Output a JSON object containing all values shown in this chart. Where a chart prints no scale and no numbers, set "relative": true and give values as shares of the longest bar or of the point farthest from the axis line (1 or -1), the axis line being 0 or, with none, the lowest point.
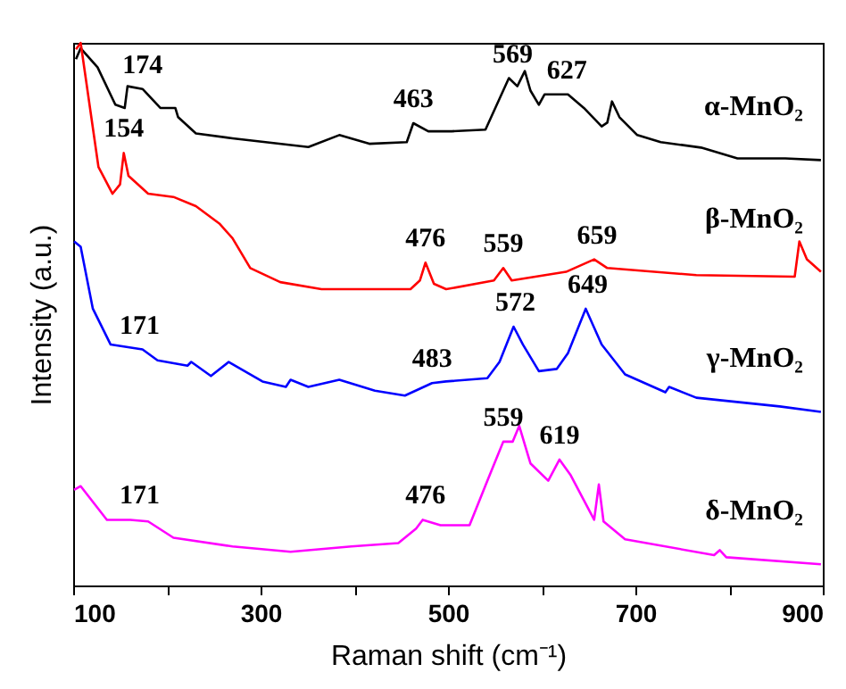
{
  "chart_data": {
    "type": "line",
    "relative": true,
    "xlabel": "Raman shift (cm⁻¹)",
    "ylabel": "Intensity (a.u.)",
    "xlim": [
      100,
      900
    ],
    "xticks": [
      100,
      {
        "value": 200,
        "label": null
      },
      300,
      {
        "value": 400,
        "label": null
      },
      500,
      {
        "value": 600,
        "label": null
      },
      700,
      {
        "value": 800,
        "label": null
      },
      900
    ],
    "grid": false,
    "series": [
      {
        "name": "α-MnO₂",
        "color": "#000000",
        "x": [
          103,
          108,
          126,
          145,
          155,
          158,
          174,
          193,
          209,
          212,
          231,
          270,
          351,
          384,
          416,
          456,
          463,
          479,
          504,
          540,
          565,
          574,
          582,
          588,
          597,
          603,
          628,
          645,
          664,
          670,
          675,
          683,
          702,
          727,
          770,
          809,
          860,
          898
        ],
        "values": [
          0.97,
          0.99,
          0.955,
          0.886,
          0.88,
          0.92,
          0.915,
          0.88,
          0.88,
          0.863,
          0.833,
          0.824,
          0.808,
          0.83,
          0.814,
          0.817,
          0.852,
          0.837,
          0.837,
          0.84,
          0.935,
          0.92,
          0.948,
          0.912,
          0.886,
          0.905,
          0.905,
          0.88,
          0.846,
          0.853,
          0.892,
          0.863,
          0.83,
          0.817,
          0.807,
          0.787,
          0.787,
          0.784
        ]
      },
      {
        "name": "β-MnO₂",
        "color": "#ff0000",
        "x": [
          103,
          108,
          127,
          142,
          150,
          154,
          159,
          180,
          207,
          231,
          256,
          270,
          289,
          321,
          365,
          460,
          470,
          476,
          485,
          498,
          549,
          559,
          568,
          626,
          656,
          670,
          765,
          870,
          875,
          883,
          898
        ],
        "values": [
          0.988,
          1.0,
          0.771,
          0.722,
          0.739,
          0.797,
          0.755,
          0.722,
          0.716,
          0.699,
          0.667,
          0.64,
          0.585,
          0.559,
          0.546,
          0.546,
          0.562,
          0.595,
          0.556,
          0.546,
          0.562,
          0.585,
          0.562,
          0.578,
          0.601,
          0.585,
          0.572,
          0.569,
          0.634,
          0.601,
          0.578
        ]
      },
      {
        "name": "γ-MnO₂",
        "color": "#0000ff",
        "x": [
          101,
          108,
          121,
          140,
          174,
          190,
          222,
          226,
          247,
          266,
          302,
          327,
          332,
          351,
          384,
          422,
          454,
          483,
          498,
          542,
          555,
          570,
          580,
          597,
          616,
          628,
          647,
          664,
          689,
          732,
          736,
          765,
          854,
          898
        ],
        "values": [
          0.634,
          0.624,
          0.51,
          0.444,
          0.435,
          0.415,
          0.405,
          0.412,
          0.386,
          0.412,
          0.376,
          0.366,
          0.379,
          0.366,
          0.379,
          0.359,
          0.35,
          0.373,
          0.376,
          0.382,
          0.412,
          0.477,
          0.444,
          0.395,
          0.399,
          0.428,
          0.51,
          0.444,
          0.389,
          0.356,
          0.366,
          0.346,
          0.33,
          0.32
        ]
      },
      {
        "name": "δ-MnO₂",
        "color": "#ff00ff",
        "x": [
          101,
          108,
          136,
          161,
          180,
          207,
          270,
          332,
          397,
          447,
          466,
          473,
          492,
          523,
          542,
          559,
          569,
          576,
          588,
          607,
          619,
          631,
          656,
          661,
          666,
          689,
          784,
          790,
          797,
          898
        ],
        "values": [
          0.176,
          0.183,
          0.121,
          0.121,
          0.118,
          0.088,
          0.072,
          0.062,
          0.072,
          0.078,
          0.105,
          0.121,
          0.111,
          0.111,
          0.193,
          0.265,
          0.265,
          0.294,
          0.225,
          0.193,
          0.232,
          0.203,
          0.121,
          0.186,
          0.118,
          0.085,
          0.056,
          0.065,
          0.052,
          0.039
        ]
      }
    ],
    "annotations": [
      {
        "text": "174",
        "x": 174,
        "y": 0.915
      },
      {
        "text": "463",
        "x": 463,
        "y": 0.852
      },
      {
        "text": "569",
        "x": 569,
        "y": 0.935
      },
      {
        "text": "627",
        "x": 627,
        "y": 0.905
      },
      {
        "text": "154",
        "x": 154,
        "y": 0.797
      },
      {
        "text": "476",
        "x": 476,
        "y": 0.595
      },
      {
        "text": "559",
        "x": 559,
        "y": 0.585
      },
      {
        "text": "659",
        "x": 659,
        "y": 0.601
      },
      {
        "text": "171",
        "x": 171,
        "y": 0.435
      },
      {
        "text": "483",
        "x": 483,
        "y": 0.373
      },
      {
        "text": "572",
        "x": 572,
        "y": 0.477
      },
      {
        "text": "649",
        "x": 649,
        "y": 0.51
      },
      {
        "text": "171",
        "x": 171,
        "y": 0.121
      },
      {
        "text": "476",
        "x": 476,
        "y": 0.121
      },
      {
        "text": "559",
        "x": 559,
        "y": 0.265
      },
      {
        "text": "619",
        "x": 619,
        "y": 0.232
      }
    ]
  }
}
